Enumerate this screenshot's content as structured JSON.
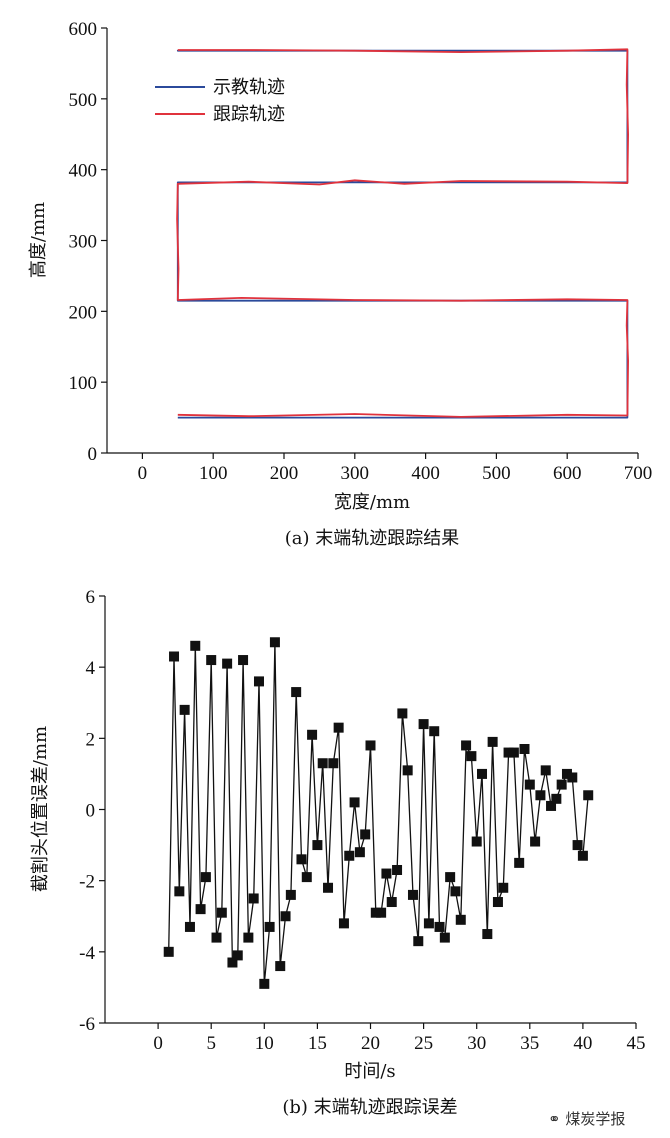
{
  "chart_data": [
    {
      "type": "line",
      "title": "",
      "caption": "(a) 末端轨迹跟踪结果",
      "xlabel": "宽度/mm",
      "ylabel": "高度/mm",
      "xlim": [
        -50,
        700
      ],
      "ylim": [
        0,
        600
      ],
      "xticks": [
        0,
        100,
        200,
        300,
        400,
        500,
        600,
        700
      ],
      "yticks": [
        0,
        100,
        200,
        300,
        400,
        500,
        600
      ],
      "legend_position": "top-left",
      "series": [
        {
          "name": "示教轨迹",
          "color": "#2b4a9b",
          "x": [
            50,
            685,
            685,
            50,
            50,
            685,
            685,
            50,
            50,
            685
          ],
          "y": [
            50,
            50,
            215,
            215,
            382,
            382,
            568,
            568,
            568,
            568
          ]
        },
        {
          "name": "跟踪轨迹",
          "color": "#e0323c",
          "x": [
            50,
            150,
            300,
            450,
            600,
            685,
            686,
            684,
            685,
            600,
            450,
            300,
            140,
            50,
            51,
            49,
            50,
            150,
            250,
            300,
            370,
            450,
            600,
            685,
            686,
            684,
            685,
            600,
            450,
            300,
            150,
            50
          ],
          "y": [
            54,
            52,
            55,
            51,
            54,
            53,
            130,
            180,
            216,
            217,
            215,
            216,
            219,
            216,
            260,
            330,
            380,
            383,
            379,
            385,
            380,
            384,
            383,
            381,
            450,
            520,
            570,
            568,
            566,
            568,
            569,
            569
          ]
        }
      ]
    },
    {
      "type": "line",
      "title": "",
      "caption": "(b) 末端轨迹跟踪误差",
      "xlabel": "时间/s",
      "ylabel": "截割头位置误差/mm",
      "xlim": [
        -5,
        45
      ],
      "ylim": [
        -6,
        6
      ],
      "xticks": [
        0,
        5,
        10,
        15,
        20,
        25,
        30,
        35,
        40,
        45
      ],
      "yticks": [
        -6,
        -4,
        -2,
        0,
        2,
        4,
        6
      ],
      "series": [
        {
          "name": "",
          "color": "#111111",
          "marker": "square",
          "x": [
            1.0,
            1.5,
            2.0,
            2.5,
            3.0,
            3.5,
            4.0,
            4.5,
            5.0,
            5.5,
            6.0,
            6.5,
            7.0,
            7.5,
            8.0,
            8.5,
            9.0,
            9.5,
            10.0,
            10.5,
            11.0,
            11.5,
            12.0,
            12.5,
            13.0,
            13.5,
            14.0,
            14.5,
            15.0,
            15.5,
            16.0,
            16.5,
            17.0,
            17.5,
            18.0,
            18.5,
            19.0,
            19.5,
            20.0,
            20.5,
            21.0,
            21.5,
            22.0,
            22.5,
            23.0,
            23.5,
            24.0,
            24.5,
            25.0,
            25.5,
            26.0,
            26.5,
            27.0,
            27.5,
            28.0,
            28.5,
            29.0,
            29.5,
            30.0,
            30.5,
            31.0,
            31.5,
            32.0,
            32.5,
            33.0,
            33.5,
            34.0,
            34.5,
            35.0,
            35.5,
            36.0,
            36.5,
            37.0,
            37.5,
            38.0,
            38.5,
            39.0,
            39.5,
            40.0,
            40.5
          ],
          "y": [
            -4.0,
            4.3,
            -2.3,
            2.8,
            -3.3,
            4.6,
            -2.8,
            -1.9,
            4.2,
            -3.6,
            -2.9,
            4.1,
            -4.3,
            -4.1,
            4.2,
            -3.6,
            -2.5,
            3.6,
            -4.9,
            -3.3,
            4.7,
            -4.4,
            -3.0,
            -2.4,
            3.3,
            -1.4,
            -1.9,
            2.1,
            -1.0,
            1.3,
            -2.2,
            1.3,
            2.3,
            -3.2,
            -1.3,
            0.2,
            -1.2,
            -0.7,
            1.8,
            -2.9,
            -2.9,
            -1.8,
            -2.6,
            -1.7,
            2.7,
            1.1,
            -2.4,
            -3.7,
            2.4,
            -3.2,
            2.2,
            -3.3,
            -3.6,
            -1.9,
            -2.3,
            -3.1,
            1.8,
            1.5,
            -0.9,
            1.0,
            -3.5,
            1.9,
            -2.6,
            -2.2,
            1.6,
            1.6,
            -1.5,
            1.7,
            0.7,
            -0.9,
            0.4,
            1.1,
            0.1,
            0.3,
            0.7,
            1.0,
            0.9,
            -1.0,
            -1.3,
            0.4
          ]
        }
      ]
    }
  ],
  "watermark": "煤炭学报"
}
